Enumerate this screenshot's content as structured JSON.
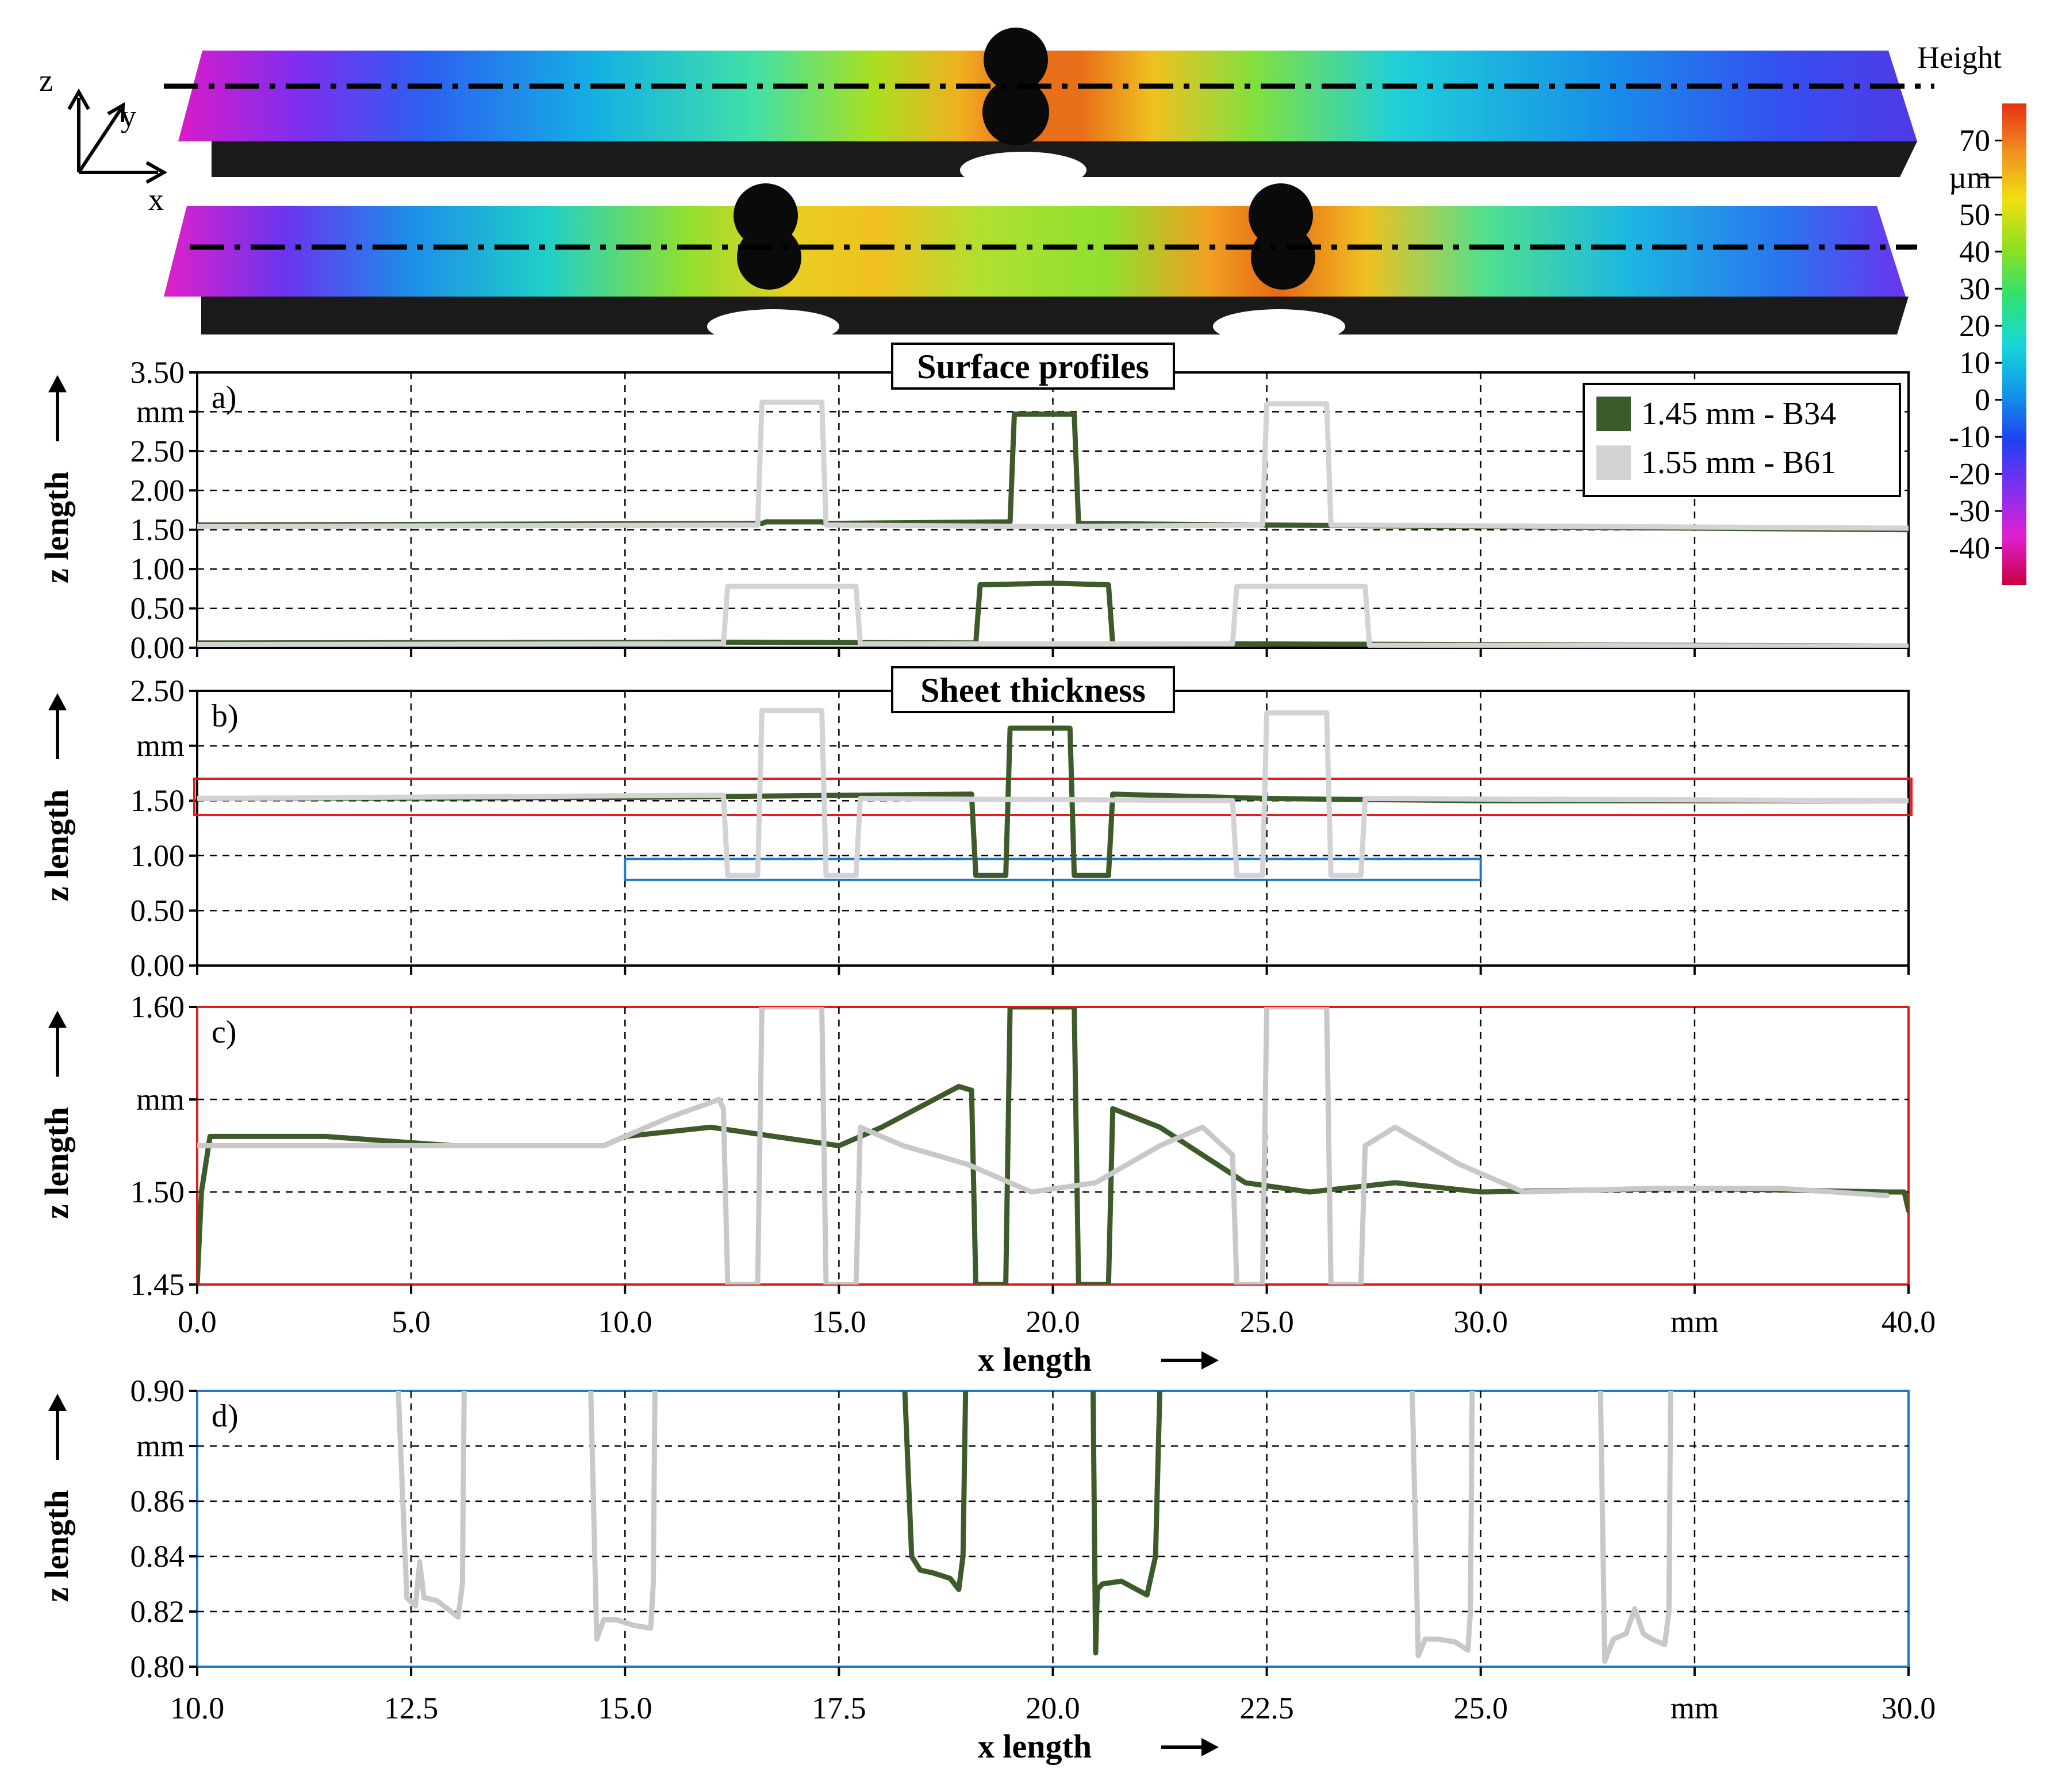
{
  "scan": {
    "colorbar_title": "Height",
    "colorbar_unit": "µm",
    "colorbar_ticks": [
      "70",
      "50",
      "40",
      "30",
      "20",
      "10",
      "0",
      "-10",
      "-20",
      "-30",
      "-40"
    ],
    "colorbar_range": [
      -50,
      80
    ],
    "colorbar_colors": [
      "#c8003c",
      "#e020d0",
      "#8030f0",
      "#2040f0",
      "#1098e8",
      "#18d8d8",
      "#30e070",
      "#90e020",
      "#f0e010",
      "#f09020",
      "#e83010"
    ],
    "axes_labels": [
      "z",
      "y",
      "x"
    ]
  },
  "chart_data": [
    {
      "type": "line",
      "panel": "a)",
      "title": "Surface profiles",
      "xlabel": "",
      "ylabel": "z length",
      "yunit": "mm",
      "xlim": [
        0,
        40
      ],
      "ylim": [
        0,
        3.5
      ],
      "xticks": [
        0,
        5,
        10,
        15,
        20,
        25,
        30,
        35,
        40
      ],
      "yticks": [
        "0.00",
        "0.50",
        "1.00",
        "1.50",
        "2.00",
        "2.50",
        "mm",
        "3.50"
      ],
      "grid": true,
      "legend_position": "top-right",
      "series": [
        {
          "name": "1.45 mm - B34",
          "color": "#3d5a2a",
          "x": [
            0,
            13.2,
            13.3,
            14.6,
            14.7,
            19.0,
            19.1,
            20.5,
            20.6,
            25.0,
            40.0
          ],
          "values": [
            1.56,
            1.58,
            1.6,
            1.6,
            1.58,
            1.6,
            2.97,
            2.97,
            1.58,
            1.56,
            1.5
          ]
        },
        {
          "name": "",
          "color": "#3d5a2a",
          "x": [
            0,
            12.3,
            18.2,
            18.3,
            20.0,
            21.3,
            21.4,
            24.2,
            40.0
          ],
          "values": [
            0.06,
            0.07,
            0.06,
            0.8,
            0.82,
            0.8,
            0.04,
            0.05,
            0.02
          ]
        },
        {
          "name": "1.55 mm - B61",
          "color": "#d3d3d3",
          "x": [
            0,
            13.1,
            13.2,
            14.6,
            14.7,
            20.0,
            24.9,
            25.0,
            26.4,
            26.5,
            40.0
          ],
          "values": [
            1.54,
            1.56,
            3.12,
            3.12,
            1.56,
            1.54,
            1.56,
            3.1,
            3.1,
            1.56,
            1.52
          ]
        },
        {
          "name": "",
          "color": "#d3d3d3",
          "x": [
            0,
            12.3,
            12.4,
            15.4,
            15.5,
            24.2,
            24.3,
            27.3,
            27.4,
            40.0
          ],
          "values": [
            0.04,
            0.05,
            0.78,
            0.78,
            0.05,
            0.05,
            0.78,
            0.78,
            0.03,
            0.02
          ]
        }
      ]
    },
    {
      "type": "line",
      "panel": "b)",
      "title": "Sheet thickness",
      "xlabel": "",
      "ylabel": "z length",
      "yunit": "mm",
      "xlim": [
        0,
        40
      ],
      "ylim": [
        0,
        2.5
      ],
      "xticks": [
        0,
        5,
        10,
        15,
        20,
        25,
        30,
        35,
        40
      ],
      "yticks": [
        "0.00",
        "0.50",
        "1.00",
        "1.50",
        "mm",
        "2.50"
      ],
      "grid": true,
      "series": [
        {
          "name": "1.45 mm - B34",
          "color": "#3d5a2a",
          "x": [
            0,
            10.0,
            18.1,
            18.2,
            18.9,
            19.0,
            20.4,
            20.5,
            21.3,
            21.4,
            25.0,
            30.0,
            40.0
          ],
          "values": [
            1.52,
            1.53,
            1.56,
            0.82,
            0.82,
            2.16,
            2.16,
            0.82,
            0.82,
            1.56,
            1.52,
            1.5,
            1.5
          ]
        },
        {
          "name": "1.55 mm - B61",
          "color": "#d3d3d3",
          "x": [
            0,
            12.3,
            12.4,
            13.1,
            13.2,
            14.6,
            14.7,
            15.4,
            15.5,
            24.2,
            24.3,
            24.9,
            25.0,
            26.4,
            26.5,
            27.2,
            27.3,
            40.0
          ],
          "values": [
            1.52,
            1.55,
            0.82,
            0.82,
            2.32,
            2.32,
            0.82,
            0.82,
            1.52,
            1.5,
            0.82,
            0.82,
            2.3,
            2.3,
            0.82,
            0.82,
            1.52,
            1.5
          ]
        }
      ],
      "highlight_red_y": [
        1.37,
        1.7
      ],
      "highlight_blue": {
        "x": [
          10,
          30
        ],
        "y": [
          0.78,
          0.97
        ]
      }
    },
    {
      "type": "line",
      "panel": "c)",
      "title": "",
      "xlabel": "x length",
      "ylabel": "z length",
      "xunit": "mm",
      "yunit": "mm",
      "xlim": [
        0,
        40
      ],
      "ylim": [
        1.45,
        1.6
      ],
      "xticks": [
        "0.0",
        "5.0",
        "10.0",
        "15.0",
        "20.0",
        "25.0",
        "30.0",
        "mm",
        "40.0"
      ],
      "yticks": [
        "1.45",
        "1.50",
        "mm",
        "1.60"
      ],
      "grid": true,
      "series": [
        {
          "name": "1.45 mm - B34",
          "color": "#3d5a2a",
          "x": [
            0,
            0.1,
            0.3,
            3.0,
            6.0,
            9.5,
            10.0,
            12.0,
            15.0,
            16.0,
            17.8,
            18.1,
            18.2,
            18.9,
            19.0,
            20.5,
            20.6,
            21.3,
            21.4,
            22.5,
            23.5,
            24.5,
            26.0,
            28.0,
            30.0,
            35.0,
            39.5,
            39.9,
            40.0
          ],
          "values": [
            1.45,
            1.5,
            1.53,
            1.53,
            1.525,
            1.525,
            1.53,
            1.535,
            1.525,
            1.535,
            1.557,
            1.555,
            1.45,
            1.45,
            1.6,
            1.6,
            1.45,
            1.45,
            1.545,
            1.535,
            1.52,
            1.505,
            1.5,
            1.505,
            1.5,
            1.502,
            1.5,
            1.5,
            1.49
          ]
        },
        {
          "name": "1.55 mm - B61",
          "color": "#c8c8c8",
          "x": [
            0,
            3.0,
            9.5,
            11.0,
            12.2,
            12.3,
            12.4,
            13.1,
            13.2,
            14.6,
            14.7,
            15.4,
            15.5,
            16.5,
            18.0,
            19.5,
            21.0,
            22.5,
            23.5,
            24.2,
            24.3,
            24.9,
            25.0,
            26.4,
            26.5,
            27.2,
            27.3,
            28.0,
            29.5,
            31.0,
            34.0,
            37.0,
            39.5
          ],
          "values": [
            1.525,
            1.525,
            1.525,
            1.54,
            1.55,
            1.545,
            1.45,
            1.45,
            1.6,
            1.6,
            1.45,
            1.45,
            1.535,
            1.525,
            1.515,
            1.5,
            1.505,
            1.525,
            1.535,
            1.52,
            1.45,
            1.45,
            1.6,
            1.6,
            1.45,
            1.45,
            1.525,
            1.535,
            1.515,
            1.5,
            1.502,
            1.502,
            1.498
          ]
        }
      ]
    },
    {
      "type": "line",
      "panel": "d)",
      "title": "",
      "xlabel": "x length",
      "ylabel": "z length",
      "xunit": "mm",
      "yunit": "mm",
      "xlim": [
        10,
        30
      ],
      "ylim": [
        0.8,
        0.9
      ],
      "xticks": [
        "10.0",
        "12.5",
        "15.0",
        "17.5",
        "20.0",
        "22.5",
        "25.0",
        "mm",
        "30.0"
      ],
      "yticks": [
        "0.80",
        "0.82",
        "0.84",
        "0.86",
        "mm",
        "0.90"
      ],
      "grid": true,
      "series": [
        {
          "name": "1.45 mm - B34",
          "color": "#3d5a2a",
          "x": [
            18.27,
            18.35,
            18.45,
            18.6,
            18.8,
            18.9,
            18.95,
            18.98
          ],
          "values": [
            0.9,
            0.84,
            0.835,
            0.834,
            0.832,
            0.828,
            0.84,
            0.9
          ]
        },
        {
          "name": "",
          "color": "#3d5a2a",
          "x": [
            20.47,
            20.5,
            20.52,
            20.58,
            20.8,
            21.1,
            21.2,
            21.25
          ],
          "values": [
            0.9,
            0.805,
            0.828,
            0.83,
            0.831,
            0.826,
            0.84,
            0.9
          ]
        },
        {
          "name": "1.55 mm - B61",
          "color": "#c8c8c8",
          "x": [
            12.35,
            12.45,
            12.55,
            12.6,
            12.65,
            12.8,
            13.05,
            13.1,
            13.12
          ],
          "values": [
            0.9,
            0.825,
            0.822,
            0.838,
            0.825,
            0.824,
            0.818,
            0.83,
            0.9
          ]
        },
        {
          "name": "",
          "color": "#c8c8c8",
          "x": [
            14.6,
            14.67,
            14.75,
            14.9,
            15.1,
            15.3,
            15.33,
            15.35
          ],
          "values": [
            0.9,
            0.81,
            0.817,
            0.817,
            0.815,
            0.814,
            0.83,
            0.9
          ]
        },
        {
          "name": "",
          "color": "#c8c8c8",
          "x": [
            24.2,
            24.27,
            24.35,
            24.5,
            24.7,
            24.85,
            24.88,
            24.9
          ],
          "values": [
            0.9,
            0.804,
            0.81,
            0.81,
            0.809,
            0.806,
            0.82,
            0.9
          ]
        },
        {
          "name": "",
          "color": "#c8c8c8",
          "x": [
            26.4,
            26.45,
            26.55,
            26.7,
            26.8,
            26.9,
            27.0,
            27.15,
            27.2,
            27.22
          ],
          "values": [
            0.9,
            0.802,
            0.81,
            0.812,
            0.821,
            0.812,
            0.81,
            0.808,
            0.82,
            0.9
          ]
        }
      ]
    }
  ]
}
